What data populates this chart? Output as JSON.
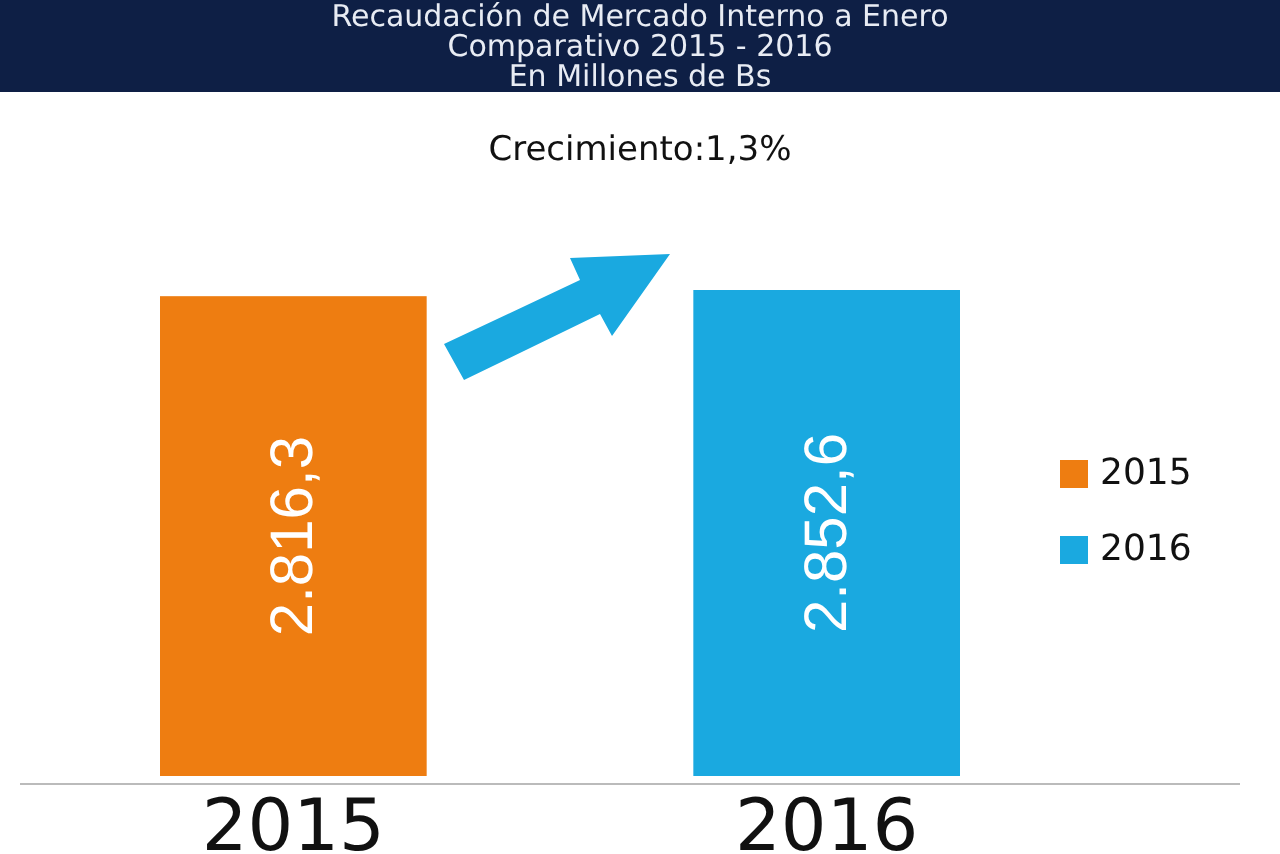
{
  "chart_data": {
    "type": "bar",
    "title": "Recaudación de Mercado Interno a Enero\nComparativo 2015 - 2016\nEn Millones de Bs",
    "annotations": [
      "Crecimiento:1,3%"
    ],
    "categories": [
      "2015",
      "2016"
    ],
    "stacked": true,
    "series": [
      {
        "name": "2015",
        "color": "#ee7d11",
        "values": [
          2816.3,
          null
        ],
        "value_labels": [
          "2.816,3",
          null
        ]
      },
      {
        "name": "2016",
        "color": "#1aa9e0",
        "values": [
          null,
          2852.6
        ],
        "value_labels": [
          null,
          "2.852,6"
        ]
      }
    ],
    "legend": "right"
  }
}
